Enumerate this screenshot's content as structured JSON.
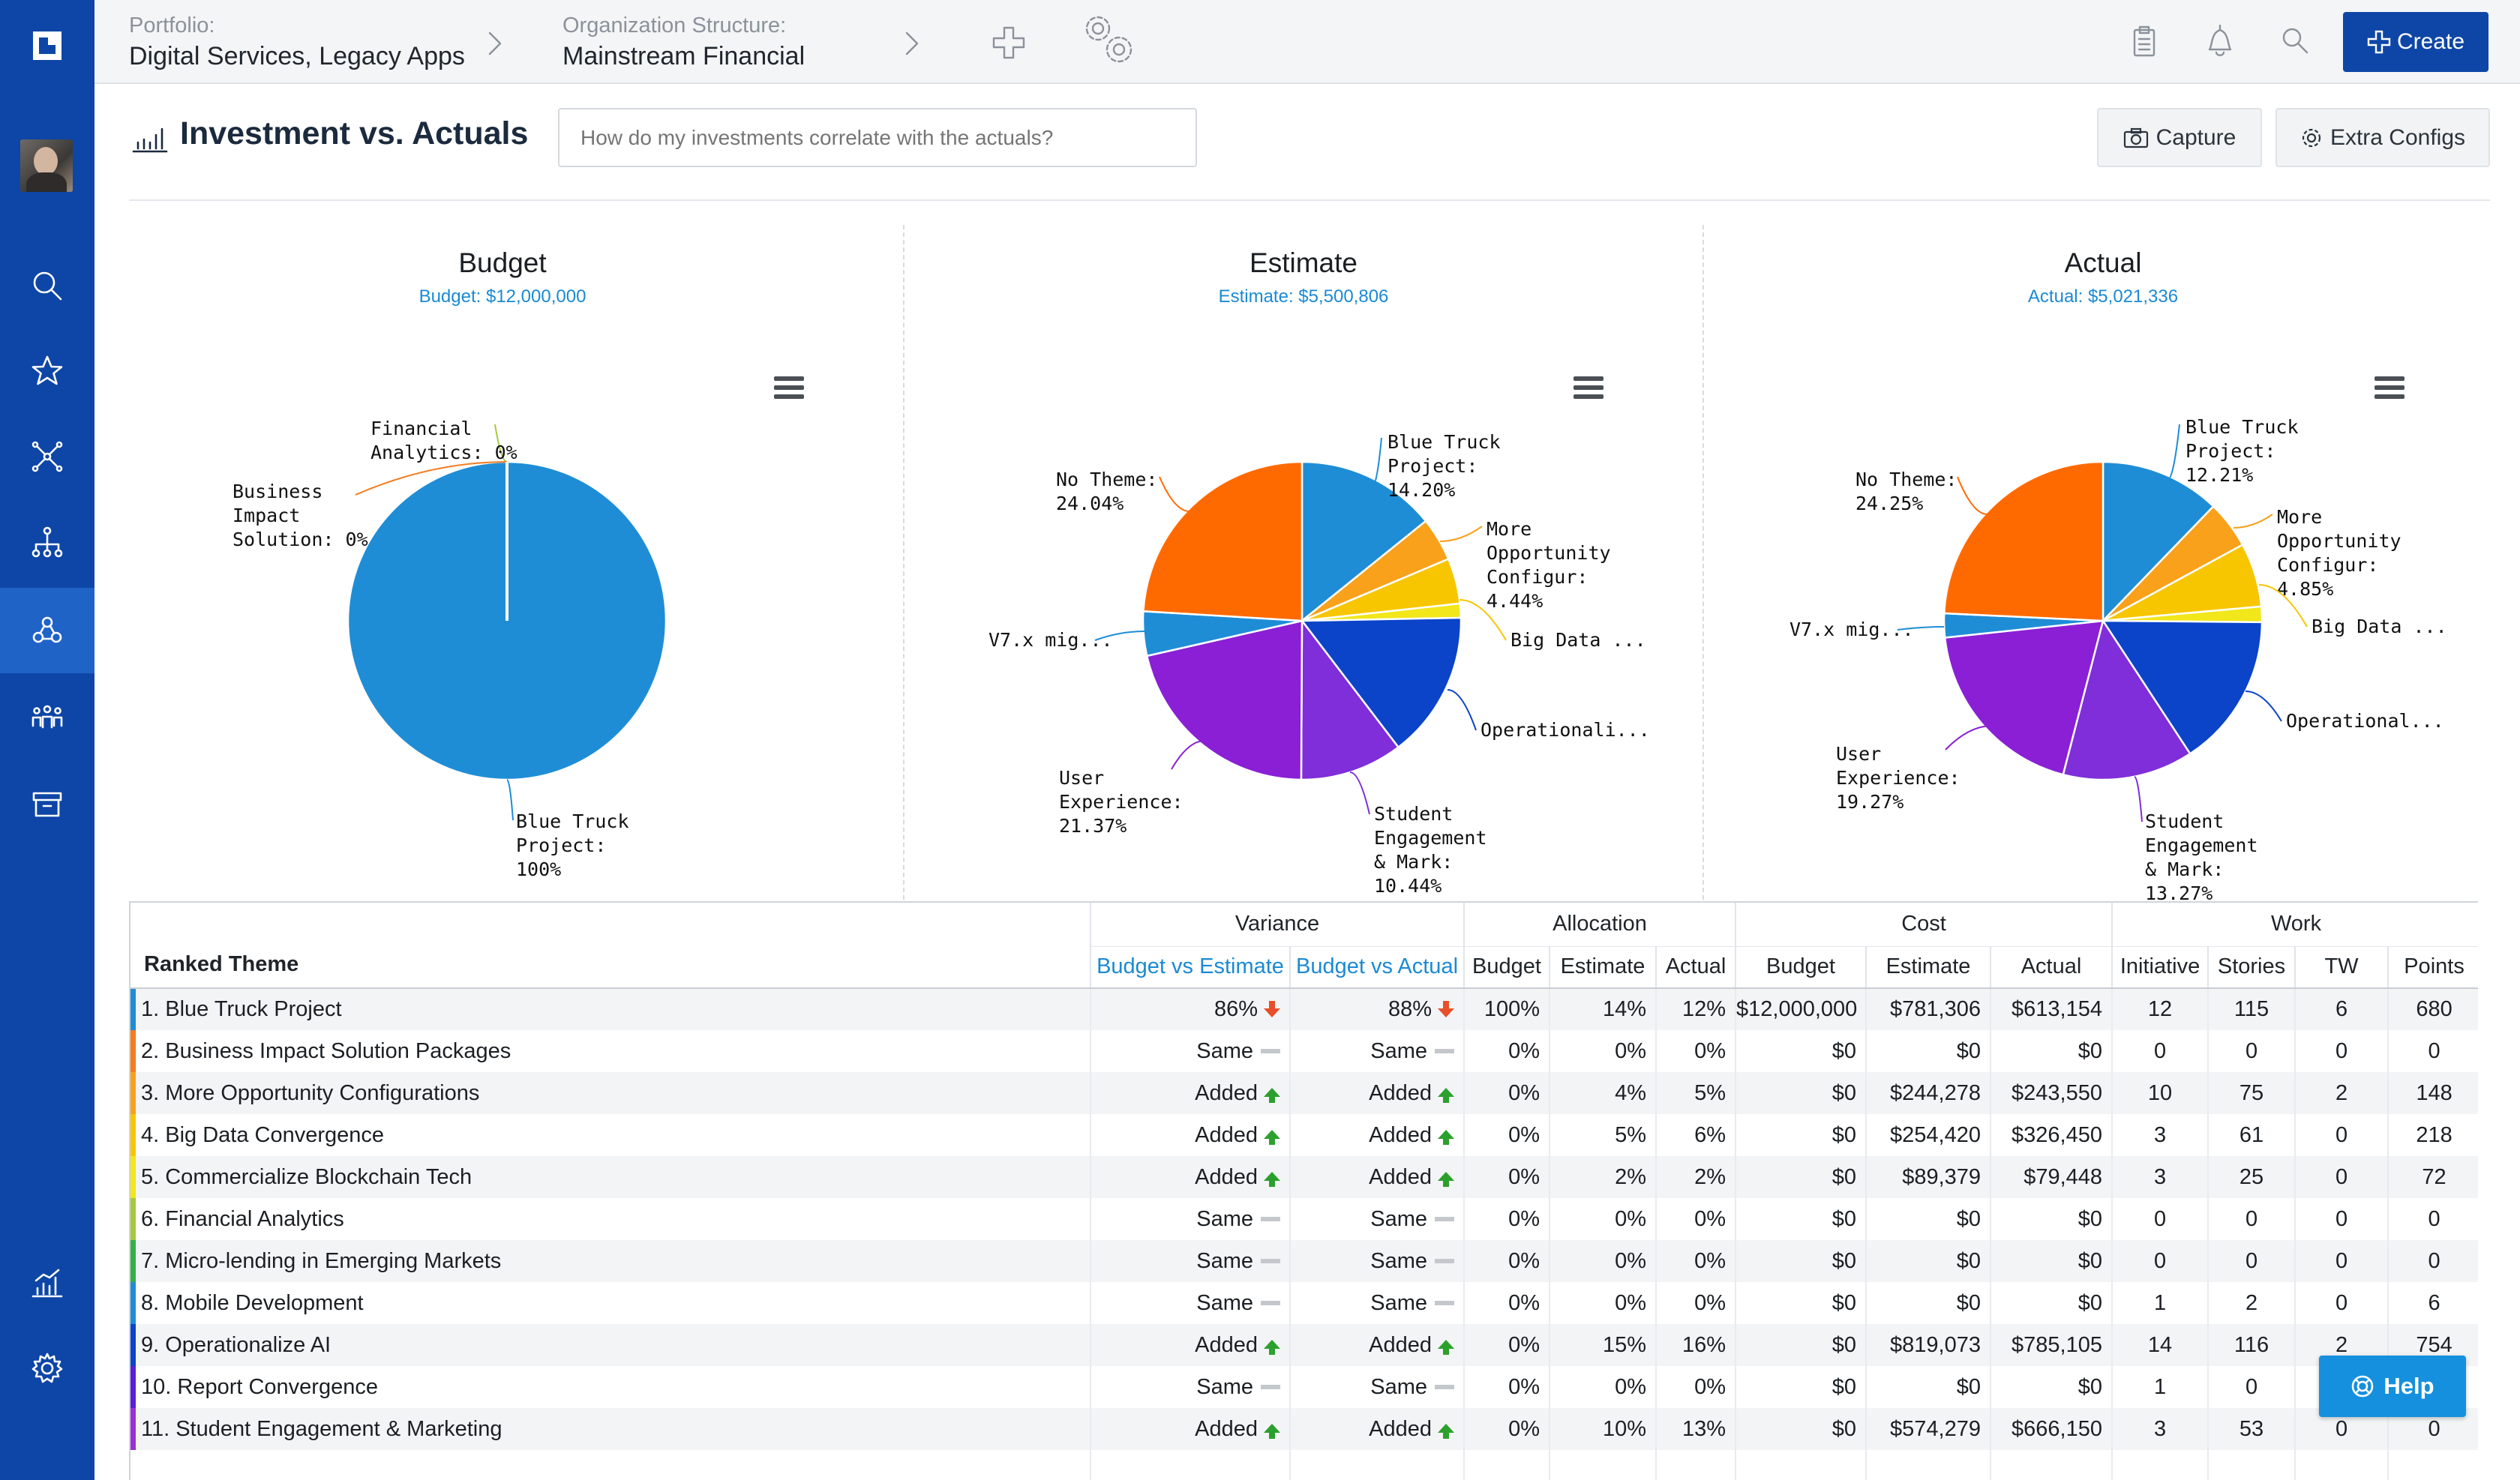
{
  "breadcrumb": {
    "portfolio_label": "Portfolio:",
    "portfolio_value": "Digital Services, Legacy Apps",
    "org_label": "Organization Structure:",
    "org_value": "Mainstream Financial"
  },
  "header": {
    "create_label": "Create",
    "icons": [
      "plus-icon",
      "gears-icon",
      "clipboard-icon",
      "bell-icon",
      "search-icon"
    ]
  },
  "sidebar": {
    "items": [
      "home-logo",
      "avatar",
      "search-icon",
      "star-icon",
      "network-icon",
      "hierarchy-icon",
      "team-icon",
      "people-icon",
      "archive-icon",
      "analytics-icon",
      "settings-icon"
    ],
    "active": "team-icon"
  },
  "page": {
    "title": "Investment vs. Actuals",
    "question_placeholder": "How do my investments correlate with the actuals?",
    "capture_label": "Capture",
    "extra_configs_label": "Extra Configs"
  },
  "colors": {
    "accent": "#0d46a6",
    "link": "#1a8ad4",
    "slices": [
      "#1f8dd6",
      "#f47c1f",
      "#f9a11b",
      "#f7c600",
      "#f1e71a",
      "#a6c83a",
      "#34b04a",
      "#1f8dd6",
      "#0b44c9",
      "#5a1fd6",
      "#7f2ed9",
      "#9a30d8",
      "#ff6a00"
    ]
  },
  "chart_data": [
    {
      "type": "pie",
      "title": "Budget",
      "subtitle": "Budget: $12,000,000",
      "slices": [
        {
          "label": "Blue Truck Project: 100%",
          "value": 100,
          "color": "#1f8dd6"
        },
        {
          "label": "Financial Analytics: 0%",
          "value": 0,
          "color": "#a6c83a"
        },
        {
          "label": "Business Impact Solution: 0%",
          "value": 0,
          "color": "#f47c1f"
        }
      ]
    },
    {
      "type": "pie",
      "title": "Estimate",
      "subtitle": "Estimate: $5,500,806",
      "slices": [
        {
          "label": "Blue Truck Project: 14.20%",
          "value": 14.2,
          "color": "#1f8dd6"
        },
        {
          "label": "More Opportunity Configur: 4.44%",
          "value": 4.44,
          "color": "#f9a11b"
        },
        {
          "label": "Big Data ...",
          "value": 4.62,
          "color": "#f7c600"
        },
        {
          "label": "",
          "value": 1.44,
          "color": "#f1e71a"
        },
        {
          "label": "Operationali...",
          "value": 14.94,
          "color": "#0b44c9"
        },
        {
          "label": "Student Engagement & Mark: 10.44%",
          "value": 10.44,
          "color": "#7f2ed9"
        },
        {
          "label": "User Experience: 21.37%",
          "value": 21.37,
          "color": "#8a1fd6"
        },
        {
          "label": "V7.x mig...",
          "value": 4.51,
          "color": "#1f8dd6"
        },
        {
          "label": "No Theme: 24.04%",
          "value": 24.04,
          "color": "#ff6a00"
        }
      ]
    },
    {
      "type": "pie",
      "title": "Actual",
      "subtitle": "Actual: $5,021,336",
      "slices": [
        {
          "label": "Blue Truck Project: 12.21%",
          "value": 12.21,
          "color": "#1f8dd6"
        },
        {
          "label": "More Opportunity Configur: 4.85%",
          "value": 4.85,
          "color": "#f9a11b"
        },
        {
          "label": "Big Data ...",
          "value": 6.5,
          "color": "#f7c600"
        },
        {
          "label": "",
          "value": 1.58,
          "color": "#f1e71a"
        },
        {
          "label": "Operational...",
          "value": 15.63,
          "color": "#0b44c9"
        },
        {
          "label": "Student Engagement & Mark: 13.27%",
          "value": 13.27,
          "color": "#7f2ed9"
        },
        {
          "label": "User Experience: 19.27%",
          "value": 19.27,
          "color": "#8a1fd6"
        },
        {
          "label": "V7.x mig...",
          "value": 2.44,
          "color": "#1f8dd6"
        },
        {
          "label": "No Theme: 24.25%",
          "value": 24.25,
          "color": "#ff6a00"
        }
      ]
    }
  ],
  "table": {
    "ranked_label": "Ranked Theme",
    "groups": [
      "Variance",
      "Allocation",
      "Cost",
      "Work"
    ],
    "variance_cols": [
      "Budget vs Estimate",
      "Budget vs Actual"
    ],
    "allocation_cols": [
      "Budget",
      "Estimate",
      "Actual"
    ],
    "cost_cols": [
      "Budget",
      "Estimate",
      "Actual"
    ],
    "work_cols": [
      "Initiative",
      "Stories",
      "TW",
      "Points"
    ],
    "rows": [
      {
        "name": "1. Blue Truck Project",
        "color": "#1f8dd6",
        "bve": "86%",
        "bve_dir": "down",
        "bva": "88%",
        "bva_dir": "down",
        "alloc": [
          "100%",
          "14%",
          "12%"
        ],
        "cost": [
          "$12,000,000",
          "$781,306",
          "$613,154"
        ],
        "work": [
          "12",
          "115",
          "6",
          "680"
        ]
      },
      {
        "name": "2. Business Impact Solution Packages",
        "color": "#f47c1f",
        "bve": "Same",
        "bve_dir": "same",
        "bva": "Same",
        "bva_dir": "same",
        "alloc": [
          "0%",
          "0%",
          "0%"
        ],
        "cost": [
          "$0",
          "$0",
          "$0"
        ],
        "work": [
          "0",
          "0",
          "0",
          "0"
        ]
      },
      {
        "name": "3. More Opportunity Configurations",
        "color": "#f9a11b",
        "bve": "Added",
        "bve_dir": "up",
        "bva": "Added",
        "bva_dir": "up",
        "alloc": [
          "0%",
          "4%",
          "5%"
        ],
        "cost": [
          "$0",
          "$244,278",
          "$243,550"
        ],
        "work": [
          "10",
          "75",
          "2",
          "148"
        ]
      },
      {
        "name": "4. Big Data Convergence",
        "color": "#f7c600",
        "bve": "Added",
        "bve_dir": "up",
        "bva": "Added",
        "bva_dir": "up",
        "alloc": [
          "0%",
          "5%",
          "6%"
        ],
        "cost": [
          "$0",
          "$254,420",
          "$326,450"
        ],
        "work": [
          "3",
          "61",
          "0",
          "218"
        ]
      },
      {
        "name": "5. Commercialize Blockchain Tech",
        "color": "#f1e71a",
        "bve": "Added",
        "bve_dir": "up",
        "bva": "Added",
        "bva_dir": "up",
        "alloc": [
          "0%",
          "2%",
          "2%"
        ],
        "cost": [
          "$0",
          "$89,379",
          "$79,448"
        ],
        "work": [
          "3",
          "25",
          "0",
          "72"
        ]
      },
      {
        "name": "6. Financial Analytics",
        "color": "#a6c83a",
        "bve": "Same",
        "bve_dir": "same",
        "bva": "Same",
        "bva_dir": "same",
        "alloc": [
          "0%",
          "0%",
          "0%"
        ],
        "cost": [
          "$0",
          "$0",
          "$0"
        ],
        "work": [
          "0",
          "0",
          "0",
          "0"
        ]
      },
      {
        "name": "7. Micro-lending in Emerging Markets",
        "color": "#34b04a",
        "bve": "Same",
        "bve_dir": "same",
        "bva": "Same",
        "bva_dir": "same",
        "alloc": [
          "0%",
          "0%",
          "0%"
        ],
        "cost": [
          "$0",
          "$0",
          "$0"
        ],
        "work": [
          "0",
          "0",
          "0",
          "0"
        ]
      },
      {
        "name": "8. Mobile Development",
        "color": "#1f8dd6",
        "bve": "Same",
        "bve_dir": "same",
        "bva": "Same",
        "bva_dir": "same",
        "alloc": [
          "0%",
          "0%",
          "0%"
        ],
        "cost": [
          "$0",
          "$0",
          "$0"
        ],
        "work": [
          "1",
          "2",
          "0",
          "6"
        ]
      },
      {
        "name": "9. Operationalize AI",
        "color": "#0b44c9",
        "bve": "Added",
        "bve_dir": "up",
        "bva": "Added",
        "bva_dir": "up",
        "alloc": [
          "0%",
          "15%",
          "16%"
        ],
        "cost": [
          "$0",
          "$819,073",
          "$785,105"
        ],
        "work": [
          "14",
          "116",
          "2",
          "754"
        ]
      },
      {
        "name": "10. Report Convergence",
        "color": "#5a1fd6",
        "bve": "Same",
        "bve_dir": "same",
        "bva": "Same",
        "bva_dir": "same",
        "alloc": [
          "0%",
          "0%",
          "0%"
        ],
        "cost": [
          "$0",
          "$0",
          "$0"
        ],
        "work": [
          "1",
          "0",
          "",
          ""
        ]
      },
      {
        "name": "11. Student Engagement & Marketing",
        "color": "#9a30d8",
        "bve": "Added",
        "bve_dir": "up",
        "bva": "Added",
        "bva_dir": "up",
        "alloc": [
          "0%",
          "10%",
          "13%"
        ],
        "cost": [
          "$0",
          "$574,279",
          "$666,150"
        ],
        "work": [
          "3",
          "53",
          "0",
          "0"
        ]
      }
    ]
  },
  "help_label": "Help"
}
